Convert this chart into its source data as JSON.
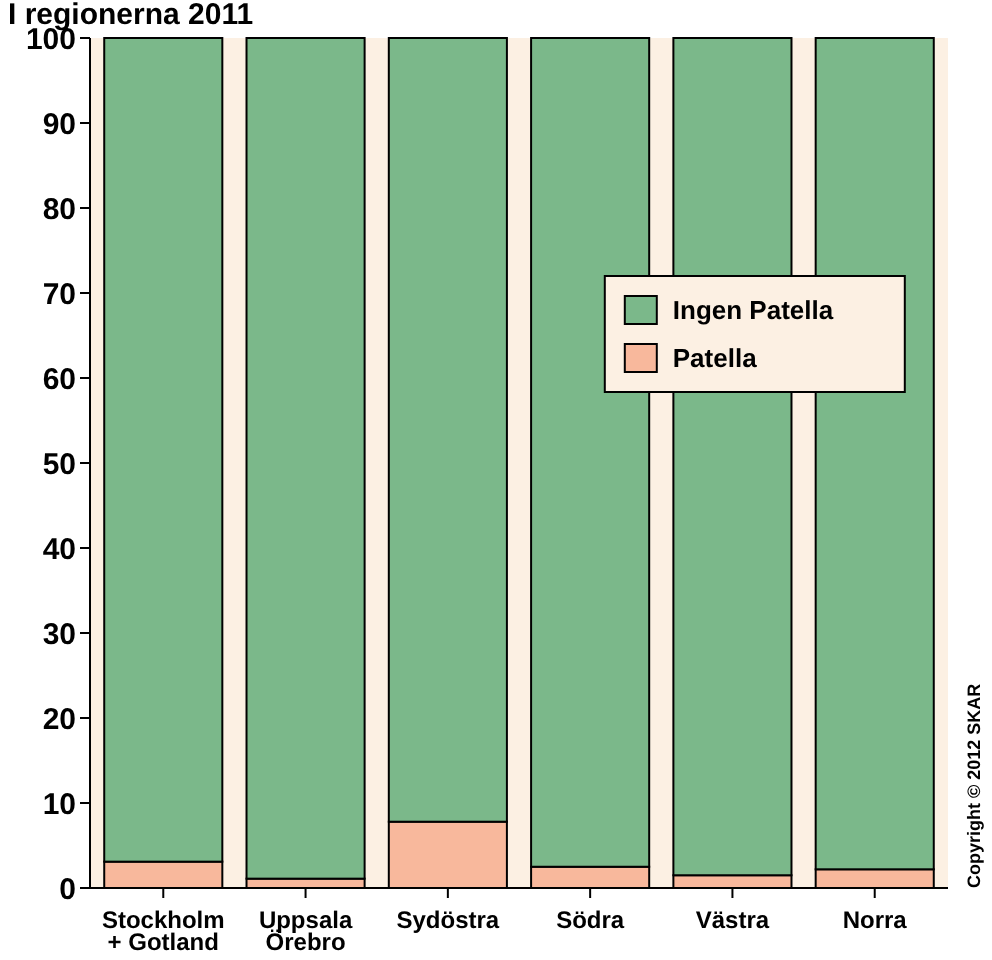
{
  "chart_data": {
    "type": "bar",
    "title": "I regionerna 2011",
    "stacked": true,
    "categories": [
      "Stockholm\n+ Gotland",
      "Uppsala\nÖrebro",
      "Sydöstra",
      "Södra",
      "Västra",
      "Norra"
    ],
    "series": [
      {
        "name": "Patella",
        "color": "#f8b89c",
        "values": [
          3.1,
          1.1,
          7.8,
          2.5,
          1.5,
          2.2
        ]
      },
      {
        "name": "Ingen Patella",
        "color": "#7bb88a",
        "values": [
          96.9,
          98.9,
          92.2,
          97.5,
          98.5,
          97.8
        ]
      }
    ],
    "ylim": [
      0,
      100
    ],
    "yticks": [
      0,
      10,
      20,
      30,
      40,
      50,
      60,
      70,
      80,
      90,
      100
    ],
    "grid": false,
    "legend": "right",
    "annotations": [
      "Copyright © 2012 SKAR"
    ]
  }
}
